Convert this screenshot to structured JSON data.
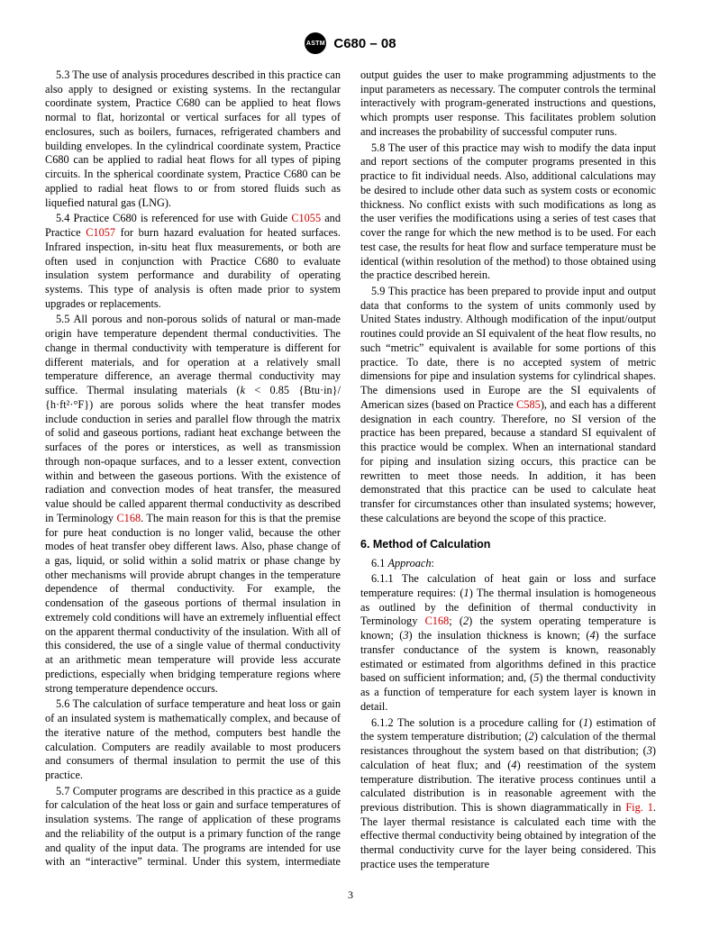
{
  "header": {
    "logo_text": "ASTM",
    "doc_id": "C680 – 08"
  },
  "page_number": "3",
  "colors": {
    "ref": "#cc0000",
    "text": "#000000",
    "bg": "#ffffff"
  },
  "fonts": {
    "body_family": "Times New Roman",
    "body_size_pt": 9.3,
    "heading_family": "Arial",
    "heading_size_pt": 9.5
  },
  "paras": {
    "p53a": "5.3 The use of analysis procedures described in this practice can also apply to designed or existing systems. In the rectangular coordinate system, Practice C680 can be applied to heat flows normal to flat, horizontal or vertical surfaces for all types of enclosures, such as boilers, furnaces, refrigerated chambers and building envelopes. In the cylindrical coordinate system, Practice C680 can be applied to radial heat flows for all types of piping circuits. In the spherical coordinate system, Practice C680 can be applied to radial heat flows to or from stored fluids such as liquefied natural gas (LNG).",
    "p54a": "5.4 Practice C680 is referenced for use with Guide ",
    "p54ref1": "C1055",
    "p54b": " and Practice ",
    "p54ref2": "C1057",
    "p54c": " for burn hazard evaluation for heated surfaces. Infrared inspection, in-situ heat flux measurements, or both are often used in conjunction with Practice C680 to evaluate insulation system performance and durability of operating systems. This type of analysis is often made prior to system upgrades or replacements.",
    "p55a": "5.5 All porous and non-porous solids of natural or man-made origin have temperature dependent thermal conductivities. The change in thermal conductivity with temperature is different for different materials, and for operation at a relatively small temperature difference, an average thermal conductivity may suffice. Thermal insulating materials (",
    "p55k": "k",
    "p55b": " < 0.85 {Btu·in}/ {h·ft²·°F}) are porous solids where the heat transfer modes include conduction in series and parallel flow through the matrix of solid and gaseous portions, radiant heat exchange between the surfaces of the pores or interstices, as well as transmission through non-opaque surfaces, and to a lesser extent, convection within and between the gaseous portions. With the existence of radiation and convection modes of heat transfer, the measured value should be called apparent thermal conductivity as described in Terminology ",
    "p55ref1": "C168",
    "p55c": ". The main reason for this is that the premise for pure heat conduction is no longer valid, because the other modes of heat transfer obey different laws. Also, phase change of a gas, liquid, or solid within a solid matrix or phase change by other mechanisms will provide abrupt changes in the temperature dependence of thermal conductivity. For example, the condensation of the gaseous portions of thermal insulation in extremely cold conditions will have an extremely influential effect on the apparent thermal conductivity of the insulation. With all of this considered, the use of a single value of thermal conductivity at an arithmetic mean temperature will provide less accurate predictions, especially when bridging temperature regions where strong temperature dependence occurs.",
    "p56": "5.6 The calculation of surface temperature and heat loss or gain of an insulated system is mathematically complex, and because of the iterative nature of the method, computers best handle the calculation. Computers are readily available to most producers and consumers of thermal insulation to permit the use of this practice.",
    "p57": "5.7 Computer programs are described in this practice as a guide for calculation of the heat loss or gain and surface temperatures of insulation systems. The range of application of these programs and the reliability of the output is a primary function of the range and quality of the input data. The programs are intended for use with an “interactive” terminal. Under this system, intermediate output guides the user to make programming adjustments to the input parameters as necessary. The computer controls the terminal interactively with program-generated instructions and questions, which prompts user response. This facilitates problem solution and increases the probability of successful computer runs.",
    "p58": "5.8 The user of this practice may wish to modify the data input and report sections of the computer programs presented in this practice to fit individual needs. Also, additional calculations may be desired to include other data such as system costs or economic thickness. No conflict exists with such modifications as long as the user verifies the modifications using a series of test cases that cover the range for which the new method is to be used. For each test case, the results for heat flow and surface temperature must be identical (within resolution of the method) to those obtained using the practice described herein.",
    "p59a": "5.9 This practice has been prepared to provide input and output data that conforms to the system of units commonly used by United States industry. Although modification of the input/output routines could provide an SI equivalent of the heat flow results, no such “metric” equivalent is available for some portions of this practice. To date, there is no accepted system of metric dimensions for pipe and insulation systems for cylindrical shapes. The dimensions used in Europe are the SI equivalents of American sizes (based on Practice ",
    "p59ref1": "C585",
    "p59b": "), and each has a different designation in each country. Therefore, no SI version of the practice has been prepared, because a standard SI equivalent of this practice would be complex. When an international standard for piping and insulation sizing occurs, this practice can be rewritten to meet those needs. In addition, it has been demonstrated that this practice can be used to calculate heat transfer for circumstances other than insulated systems; however, these calculations are beyond the scope of this practice.",
    "sec6": "6.  Method of Calculation",
    "sec61_num": "6.1 ",
    "sec61_label": "Approach",
    "sec61_colon": ":",
    "p611a": "6.1.1 The calculation of heat gain or loss and surface temperature requires: (",
    "p611i1n": "1",
    "p611i1": ") The thermal insulation is homogeneous as outlined by the definition of thermal conductivity in Terminology ",
    "p611ref1": "C168",
    "p611b": "; (",
    "p611i2n": "2",
    "p611i2": ") the system operating temperature is known; (",
    "p611i3n": "3",
    "p611i3": ") the insulation thickness is known; (",
    "p611i4n": "4",
    "p611i4": ") the surface transfer conductance of the system is known, reasonably estimated or estimated from algorithms defined in this practice based on sufficient information; and, (",
    "p611i5n": "5",
    "p611i5": ") the thermal conductivity as a function of temperature for each system layer is known in detail.",
    "p612a": "6.1.2 The solution is a procedure calling for (",
    "p612i1n": "1",
    "p612i1": ") estimation of the system temperature distribution; (",
    "p612i2n": "2",
    "p612i2": ") calculation of the thermal resistances throughout the system based on that distribution; (",
    "p612i3n": "3",
    "p612i3": ") calculation of heat flux; and (",
    "p612i4n": "4",
    "p612i4": ") reestimation of the system temperature distribution. The iterative process continues until a calculated distribution is in reasonable agreement with the previous distribution. This is shown diagrammatically in ",
    "p612ref1": "Fig. 1",
    "p612b": ". The layer thermal resistance is calculated each time with the effective thermal conductivity being obtained by integration of the thermal conductivity curve for the layer being considered. This practice uses the temperature"
  }
}
